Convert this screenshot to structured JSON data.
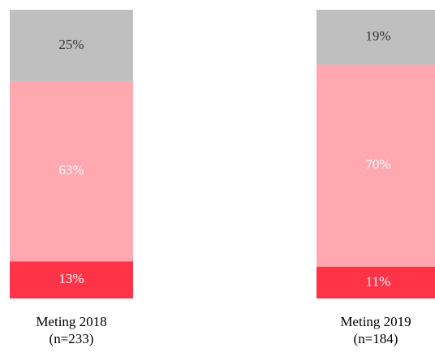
{
  "chart_data": {
    "type": "bar",
    "stacked": true,
    "percent_stacked": true,
    "categories": [
      [
        "Meting 2018",
        "(n=233)"
      ],
      [
        "Meting 2019",
        "(n=184)"
      ]
    ],
    "series": [
      {
        "color": "#ff3347",
        "label_color": "#ffffff",
        "values": [
          13,
          11
        ],
        "value_labels": [
          "13%",
          "11%"
        ]
      },
      {
        "color": "#ffa8b0",
        "label_color": "#ffffff",
        "values": [
          63,
          70
        ],
        "value_labels": [
          "63%",
          "70%"
        ]
      },
      {
        "color": "#bfbfbf",
        "label_color": "#333333",
        "values": [
          25,
          19
        ],
        "value_labels": [
          "25%",
          "19%"
        ]
      }
    ]
  }
}
